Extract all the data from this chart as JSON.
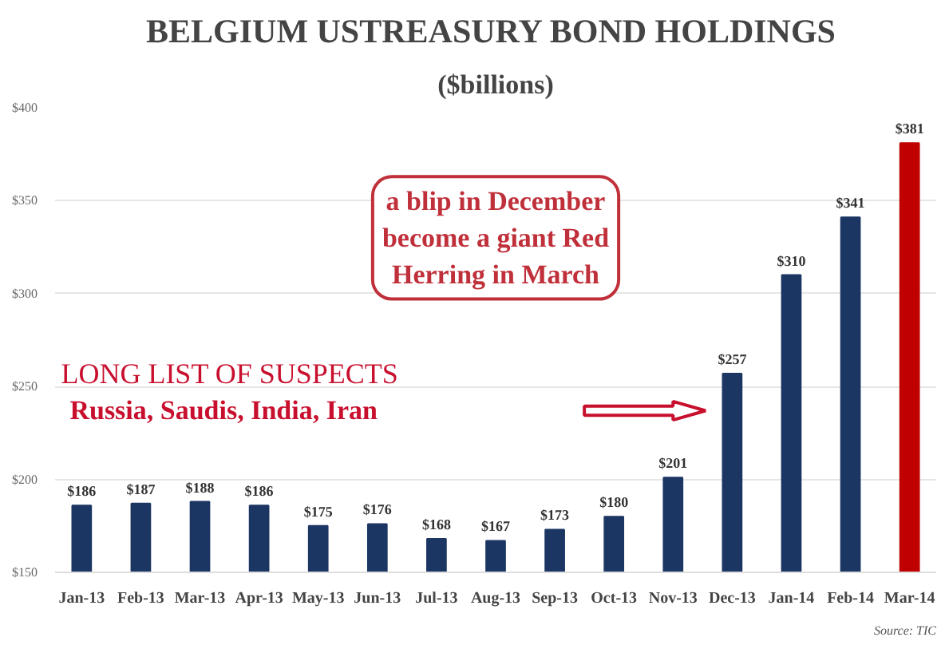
{
  "chart_data": {
    "type": "bar",
    "title": "BELGIUM USTREASURY BOND  HOLDINGS",
    "subtitle": "($billions)",
    "categories": [
      "Jan-13",
      "Feb-13",
      "Mar-13",
      "Apr-13",
      "May-13",
      "Jun-13",
      "Jul-13",
      "Aug-13",
      "Sep-13",
      "Oct-13",
      "Nov-13",
      "Dec-13",
      "Jan-14",
      "Feb-14",
      "Mar-14"
    ],
    "values": [
      186,
      187,
      188,
      186,
      175,
      176,
      168,
      167,
      173,
      180,
      201,
      257,
      310,
      341,
      381
    ],
    "value_labels": [
      "$186",
      "$187",
      "$188",
      "$186",
      "$175",
      "$176",
      "$168",
      "$167",
      "$173",
      "$180",
      "$201",
      "$257",
      "$310",
      "$341",
      "$381"
    ],
    "colors": [
      "#1c3664",
      "#1c3664",
      "#1c3664",
      "#1c3664",
      "#1c3664",
      "#1c3664",
      "#1c3664",
      "#1c3664",
      "#1c3664",
      "#1c3664",
      "#1c3664",
      "#1c3664",
      "#1c3664",
      "#1c3664",
      "#c00000"
    ],
    "ylim": [
      150,
      400
    ],
    "yticks": [
      {
        "value": 150,
        "label": "$150"
      },
      {
        "value": 200,
        "label": "$200"
      },
      {
        "value": 250,
        "label": "$250"
      },
      {
        "value": 300,
        "label": "$300"
      },
      {
        "value": 350,
        "label": "$350"
      },
      {
        "value": 400,
        "label": "$400"
      }
    ],
    "grid": "y",
    "annotations": [
      "a blip in December\nbecome a giant Red\nHerring in March",
      "LONG LIST OF SUSPECTS",
      "Russia, Saudis, India, Iran",
      "Source: TIC"
    ]
  }
}
